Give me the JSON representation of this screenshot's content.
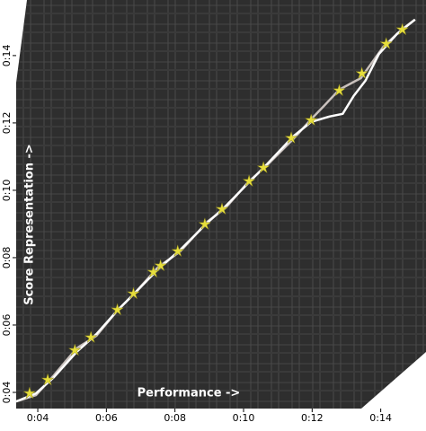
{
  "chart_data": {
    "type": "line",
    "xlabel": "Performance ->",
    "ylabel": "Score Representation ->",
    "xlim": [
      3.37,
      15.32
    ],
    "ylim": [
      3.52,
      15.65
    ],
    "xticks": [
      {
        "value": 4,
        "label": "0:04"
      },
      {
        "value": 6,
        "label": "0:06"
      },
      {
        "value": 8,
        "label": "0:08"
      },
      {
        "value": 10,
        "label": "0:10"
      },
      {
        "value": 12,
        "label": "0:12"
      },
      {
        "value": 14,
        "label": "0:14"
      }
    ],
    "yticks": [
      {
        "value": 4,
        "label": "0:04"
      },
      {
        "value": 6,
        "label": "0:06"
      },
      {
        "value": 8,
        "label": "0:08"
      },
      {
        "value": 10,
        "label": "0:10"
      },
      {
        "value": 12,
        "label": "0:12"
      },
      {
        "value": 14,
        "label": "0:14"
      }
    ],
    "series": [
      {
        "color": "#c9c1bd",
        "style": "line",
        "x": [
          3.37,
          3.95,
          4.47,
          5.13,
          5.71,
          6.32,
          6.84,
          7.5,
          8.16,
          8.95,
          9.47,
          10.13,
          10.66,
          11.45,
          11.97,
          12.37,
          12.79,
          13.42,
          14.08,
          14.61,
          15.0
        ],
        "values": [
          3.73,
          3.92,
          4.51,
          5.31,
          5.68,
          6.43,
          6.96,
          7.71,
          8.19,
          9.07,
          9.47,
          10.24,
          10.72,
          11.52,
          12.11,
          12.53,
          12.99,
          13.33,
          14.27,
          14.77,
          15.07
        ]
      },
      {
        "color": "#ffffff",
        "style": "line",
        "x": [
          3.37,
          3.95,
          4.47,
          5.13,
          5.71,
          6.32,
          6.84,
          7.5,
          8.16,
          8.95,
          9.47,
          10.13,
          10.66,
          11.45,
          11.97,
          12.5,
          12.89,
          13.21,
          13.55,
          13.95,
          14.47,
          15.0
        ],
        "values": [
          3.73,
          3.97,
          4.45,
          5.2,
          5.73,
          6.43,
          6.96,
          7.65,
          8.24,
          9.04,
          9.52,
          10.21,
          10.75,
          11.6,
          12.03,
          12.19,
          12.27,
          12.8,
          13.25,
          14.05,
          14.64,
          15.07
        ]
      },
      {
        "color": "#e6de3c",
        "style": "star",
        "x": [
          3.76,
          4.29,
          5.08,
          5.55,
          6.32,
          6.79,
          7.37,
          7.58,
          8.08,
          8.87,
          9.37,
          10.16,
          10.58,
          11.39,
          11.97,
          12.79,
          13.45,
          14.16,
          14.63
        ],
        "values": [
          3.97,
          4.37,
          5.25,
          5.63,
          6.45,
          6.93,
          7.57,
          7.76,
          8.19,
          8.99,
          9.44,
          10.27,
          10.67,
          11.55,
          12.08,
          12.96,
          13.47,
          14.35,
          14.77
        ]
      }
    ]
  }
}
